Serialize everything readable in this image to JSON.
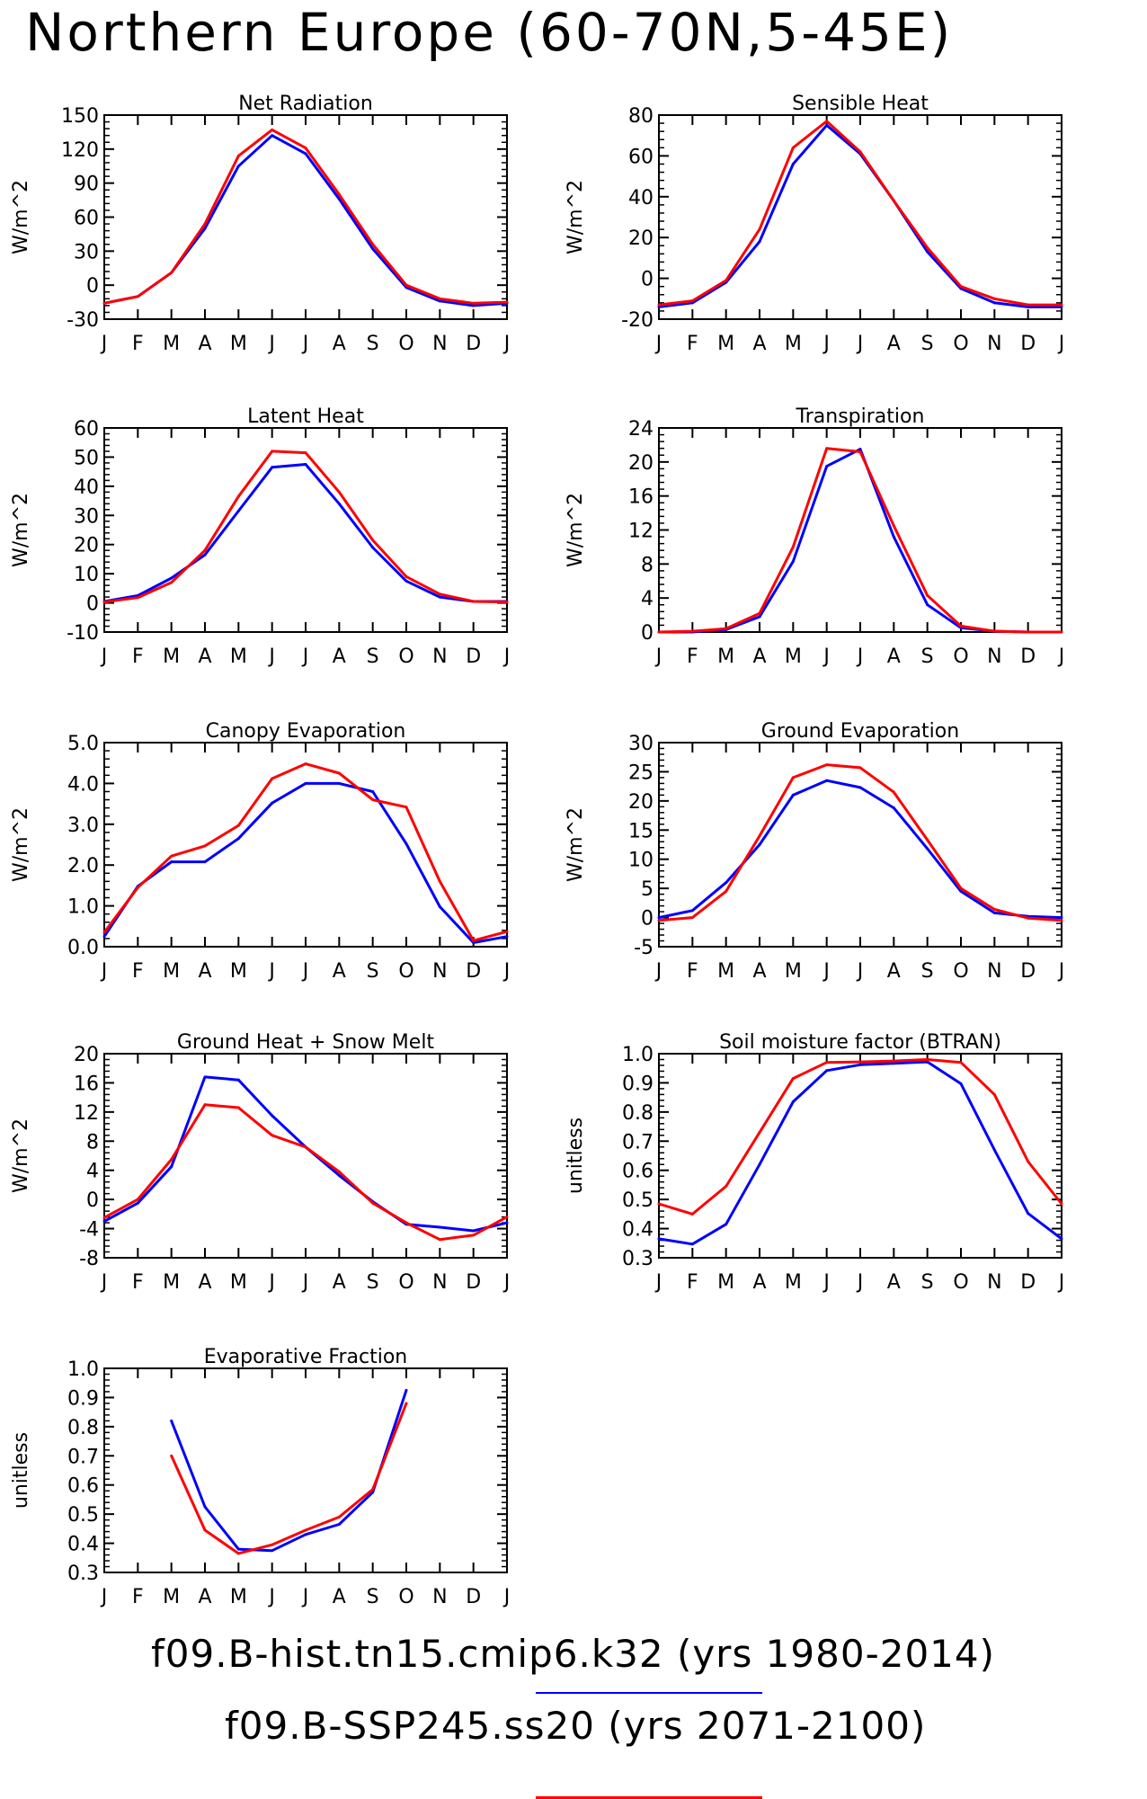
{
  "page": {
    "title": "Northern Europe (60-70N,5-45E)"
  },
  "legend": {
    "series": [
      {
        "label": "f09.B-hist.tn15.cmip6.k32 (yrs 1980-2014)",
        "color": "#0000ff"
      },
      {
        "label": "f09.B-SSP245.ss20 (yrs 2071-2100)",
        "color": "#ff0000"
      }
    ]
  },
  "chart_data": [
    {
      "type": "line",
      "title": "Net Radiation",
      "ylabel": "W/m^2",
      "categories": [
        "J",
        "F",
        "M",
        "A",
        "M",
        "J",
        "J",
        "A",
        "S",
        "O",
        "N",
        "D",
        "J"
      ],
      "ylim": [
        -30,
        150
      ],
      "yticks": [
        -30,
        0,
        30,
        60,
        90,
        120,
        150
      ],
      "ytick_labels": [
        "-30",
        "0",
        "30",
        "60",
        "90",
        "120",
        "150"
      ],
      "series": [
        {
          "color": "#0000ff",
          "values": [
            -16,
            -10,
            11,
            50,
            105,
            132,
            116,
            76,
            32,
            -2,
            -14,
            -18,
            -16
          ]
        },
        {
          "color": "#ff0000",
          "values": [
            -16,
            -10,
            11,
            54,
            114,
            137,
            121,
            80,
            36,
            0,
            -12,
            -16,
            -15
          ]
        }
      ]
    },
    {
      "type": "line",
      "title": "Sensible Heat",
      "ylabel": "W/m^2",
      "categories": [
        "J",
        "F",
        "M",
        "A",
        "M",
        "J",
        "J",
        "A",
        "S",
        "O",
        "N",
        "D",
        "J"
      ],
      "ylim": [
        -20,
        80
      ],
      "yticks": [
        -20,
        0,
        20,
        40,
        60,
        80
      ],
      "ytick_labels": [
        "-20",
        "0",
        "20",
        "40",
        "60",
        "80"
      ],
      "series": [
        {
          "color": "#0000ff",
          "values": [
            -14,
            -12,
            -2,
            18,
            56,
            75,
            61,
            38,
            13,
            -5,
            -12,
            -14,
            -14
          ]
        },
        {
          "color": "#ff0000",
          "values": [
            -13,
            -11,
            -1,
            24,
            64,
            77,
            62,
            38,
            15,
            -4,
            -10,
            -13,
            -13
          ]
        }
      ]
    },
    {
      "type": "line",
      "title": "Latent Heat",
      "ylabel": "W/m^2",
      "categories": [
        "J",
        "F",
        "M",
        "A",
        "M",
        "J",
        "J",
        "A",
        "S",
        "O",
        "N",
        "D",
        "J"
      ],
      "ylim": [
        -10,
        60
      ],
      "yticks": [
        -10,
        0,
        10,
        20,
        30,
        40,
        50,
        60
      ],
      "ytick_labels": [
        "-10",
        "0",
        "10",
        "20",
        "30",
        "40",
        "50",
        "60"
      ],
      "series": [
        {
          "color": "#0000ff",
          "values": [
            0.5,
            2.5,
            8.5,
            16.5,
            31.5,
            46.5,
            47.5,
            34,
            19,
            7.5,
            2,
            0.5,
            0.5
          ]
        },
        {
          "color": "#ff0000",
          "values": [
            0.3,
            1.8,
            7,
            18,
            36.5,
            52,
            51.5,
            38,
            21.5,
            9,
            3,
            0.5,
            0.3
          ]
        }
      ]
    },
    {
      "type": "line",
      "title": "Transpiration",
      "ylabel": "W/m^2",
      "categories": [
        "J",
        "F",
        "M",
        "A",
        "M",
        "J",
        "J",
        "A",
        "S",
        "O",
        "N",
        "D",
        "J"
      ],
      "ylim": [
        0,
        24
      ],
      "yticks": [
        0,
        4,
        8,
        12,
        16,
        20,
        24
      ],
      "ytick_labels": [
        "0",
        "4",
        "8",
        "12",
        "16",
        "20",
        "24"
      ],
      "series": [
        {
          "color": "#0000ff",
          "values": [
            0,
            0,
            0.3,
            1.8,
            8.3,
            19.5,
            21.5,
            11.2,
            3.2,
            0.5,
            0.1,
            0,
            0
          ]
        },
        {
          "color": "#ff0000",
          "values": [
            0,
            0.1,
            0.4,
            2.2,
            10,
            21.6,
            21.2,
            12.5,
            4.3,
            0.7,
            0.1,
            0,
            0
          ]
        }
      ]
    },
    {
      "type": "line",
      "title": "Canopy Evaporation",
      "ylabel": "W/m^2",
      "categories": [
        "J",
        "F",
        "M",
        "A",
        "M",
        "J",
        "J",
        "A",
        "S",
        "O",
        "N",
        "D",
        "J"
      ],
      "ylim": [
        0,
        5
      ],
      "yticks": [
        0,
        1,
        2,
        3,
        4,
        5
      ],
      "ytick_labels": [
        "0.0",
        "1.0",
        "2.0",
        "3.0",
        "4.0",
        "5.0"
      ],
      "series": [
        {
          "color": "#0000ff",
          "values": [
            0.25,
            1.48,
            2.08,
            2.08,
            2.65,
            3.52,
            4.0,
            4.0,
            3.8,
            2.52,
            0.98,
            0.1,
            0.25
          ]
        },
        {
          "color": "#ff0000",
          "values": [
            0.35,
            1.45,
            2.22,
            2.47,
            2.97,
            4.12,
            4.48,
            4.25,
            3.6,
            3.42,
            1.6,
            0.15,
            0.37
          ]
        }
      ]
    },
    {
      "type": "line",
      "title": "Ground Evaporation",
      "ylabel": "W/m^2",
      "categories": [
        "J",
        "F",
        "M",
        "A",
        "M",
        "J",
        "J",
        "A",
        "S",
        "O",
        "N",
        "D",
        "J"
      ],
      "ylim": [
        -5,
        30
      ],
      "yticks": [
        -5,
        0,
        5,
        10,
        15,
        20,
        25,
        30
      ],
      "ytick_labels": [
        "-5",
        "0",
        "5",
        "10",
        "15",
        "20",
        "25",
        "30"
      ],
      "series": [
        {
          "color": "#0000ff",
          "values": [
            0,
            1.2,
            6,
            12.5,
            21,
            23.5,
            22.3,
            18.8,
            11.8,
            4.5,
            0.8,
            0.2,
            0
          ]
        },
        {
          "color": "#ff0000",
          "values": [
            -0.5,
            0,
            4.5,
            14,
            24,
            26.2,
            25.7,
            21.5,
            13.3,
            5,
            1.4,
            -0.1,
            -0.5
          ]
        }
      ]
    },
    {
      "type": "line",
      "title": "Ground Heat + Snow Melt",
      "ylabel": "W/m^2",
      "categories": [
        "J",
        "F",
        "M",
        "A",
        "M",
        "J",
        "J",
        "A",
        "S",
        "O",
        "N",
        "D",
        "J"
      ],
      "ylim": [
        -8,
        20
      ],
      "yticks": [
        -8,
        -4,
        0,
        4,
        8,
        12,
        16,
        20
      ],
      "ytick_labels": [
        "-8",
        "-4",
        "0",
        "4",
        "8",
        "12",
        "16",
        "20"
      ],
      "series": [
        {
          "color": "#0000ff",
          "values": [
            -3,
            -0.5,
            4.5,
            16.8,
            16.4,
            11.5,
            7.2,
            3.3,
            -0.3,
            -3.4,
            -3.8,
            -4.3,
            -3.2
          ]
        },
        {
          "color": "#ff0000",
          "values": [
            -2.5,
            0,
            5.5,
            13,
            12.6,
            8.8,
            7.2,
            3.8,
            -0.5,
            -3.2,
            -5.5,
            -4.9,
            -2.4
          ]
        }
      ]
    },
    {
      "type": "line",
      "title": "Soil moisture factor (BTRAN)",
      "ylabel": "unitless",
      "categories": [
        "J",
        "F",
        "M",
        "A",
        "M",
        "J",
        "J",
        "A",
        "S",
        "O",
        "N",
        "D",
        "J"
      ],
      "ylim": [
        0.3,
        1.0
      ],
      "yticks": [
        0.3,
        0.4,
        0.5,
        0.6,
        0.7,
        0.8,
        0.9,
        1.0
      ],
      "ytick_labels": [
        "0.3",
        "0.4",
        "0.5",
        "0.6",
        "0.7",
        "0.8",
        "0.9",
        "1.0"
      ],
      "series": [
        {
          "color": "#0000ff",
          "values": [
            0.365,
            0.347,
            0.415,
            0.62,
            0.835,
            0.942,
            0.962,
            0.967,
            0.972,
            0.897,
            0.67,
            0.452,
            0.365
          ]
        },
        {
          "color": "#ff0000",
          "values": [
            0.485,
            0.45,
            0.545,
            0.73,
            0.915,
            0.97,
            0.972,
            0.975,
            0.98,
            0.97,
            0.86,
            0.63,
            0.485
          ]
        }
      ]
    },
    {
      "type": "line",
      "title": "Evaporative Fraction",
      "ylabel": "unitless",
      "categories": [
        "J",
        "F",
        "M",
        "A",
        "M",
        "J",
        "J",
        "A",
        "S",
        "O",
        "N",
        "D",
        "J"
      ],
      "ylim": [
        0.3,
        1.0
      ],
      "yticks": [
        0.3,
        0.4,
        0.5,
        0.6,
        0.7,
        0.8,
        0.9,
        1.0
      ],
      "ytick_labels": [
        "0.3",
        "0.4",
        "0.5",
        "0.6",
        "0.7",
        "0.8",
        "0.9",
        "1.0"
      ],
      "series": [
        {
          "color": "#0000ff",
          "values": [
            null,
            null,
            0.82,
            0.525,
            0.38,
            0.375,
            0.43,
            0.465,
            0.575,
            0.925,
            null,
            null,
            null
          ]
        },
        {
          "color": "#ff0000",
          "values": [
            null,
            null,
            0.7,
            0.445,
            0.365,
            0.395,
            0.445,
            0.49,
            0.585,
            0.88,
            null,
            null,
            null
          ]
        }
      ]
    }
  ]
}
